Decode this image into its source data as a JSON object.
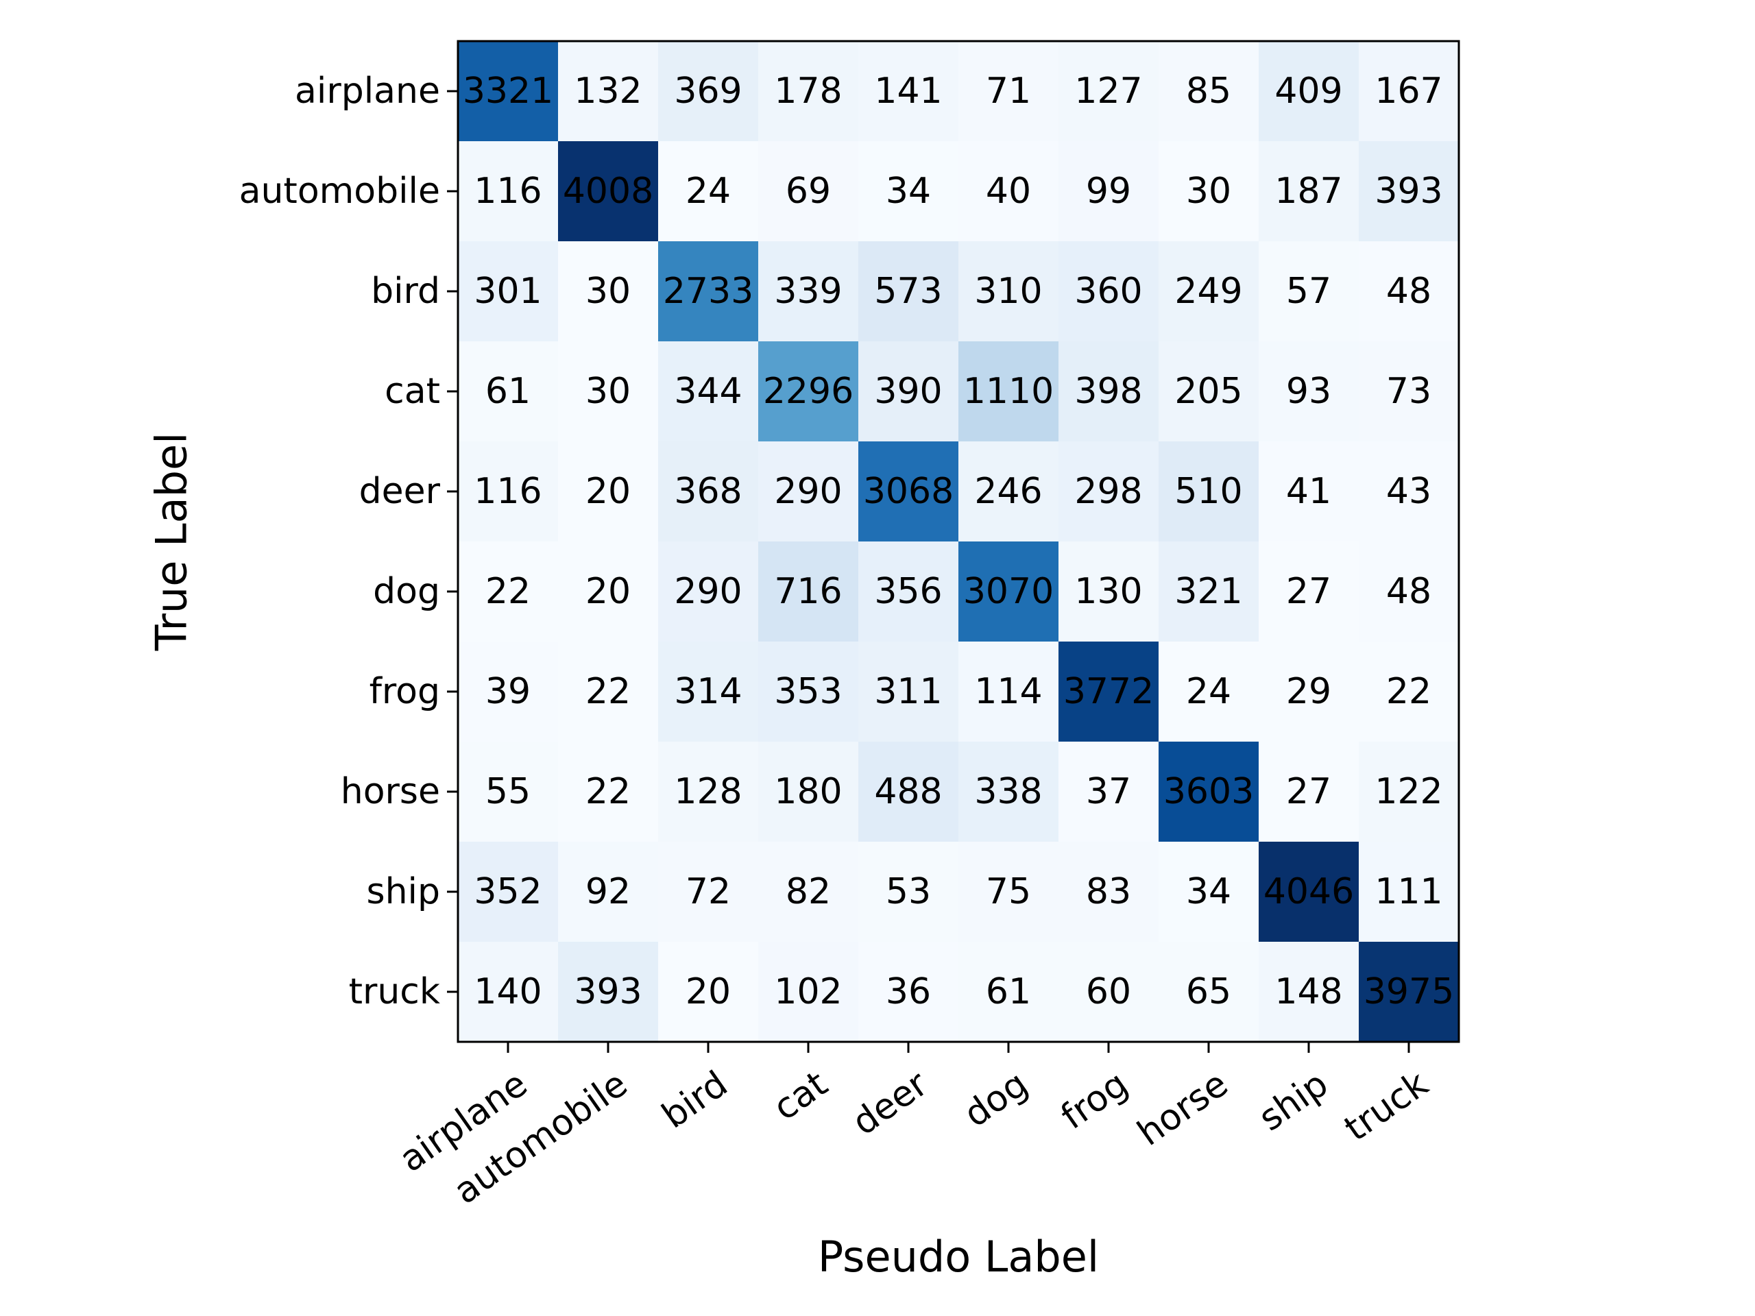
{
  "chart_data": {
    "type": "heatmap",
    "title": "",
    "xlabel": "Pseudo Label",
    "ylabel": "True Label",
    "x_categories": [
      "airplane",
      "automobile",
      "bird",
      "cat",
      "deer",
      "dog",
      "frog",
      "horse",
      "ship",
      "truck"
    ],
    "y_categories": [
      "airplane",
      "automobile",
      "bird",
      "cat",
      "deer",
      "dog",
      "frog",
      "horse",
      "ship",
      "truck"
    ],
    "values": [
      [
        3321,
        132,
        369,
        178,
        141,
        71,
        127,
        85,
        409,
        167
      ],
      [
        116,
        4008,
        24,
        69,
        34,
        40,
        99,
        30,
        187,
        393
      ],
      [
        301,
        30,
        2733,
        339,
        573,
        310,
        360,
        249,
        57,
        48
      ],
      [
        61,
        30,
        344,
        2296,
        390,
        1110,
        398,
        205,
        93,
        73
      ],
      [
        116,
        20,
        368,
        290,
        3068,
        246,
        298,
        510,
        41,
        43
      ],
      [
        22,
        20,
        290,
        716,
        356,
        3070,
        130,
        321,
        27,
        48
      ],
      [
        39,
        22,
        314,
        353,
        311,
        114,
        3772,
        24,
        29,
        22
      ],
      [
        55,
        22,
        128,
        180,
        488,
        338,
        37,
        3603,
        27,
        122
      ],
      [
        352,
        92,
        72,
        82,
        53,
        75,
        83,
        34,
        4046,
        111
      ],
      [
        140,
        393,
        20,
        102,
        36,
        61,
        60,
        65,
        148,
        3975
      ]
    ],
    "colormap": "Blues",
    "grid": false,
    "legend": "none"
  }
}
